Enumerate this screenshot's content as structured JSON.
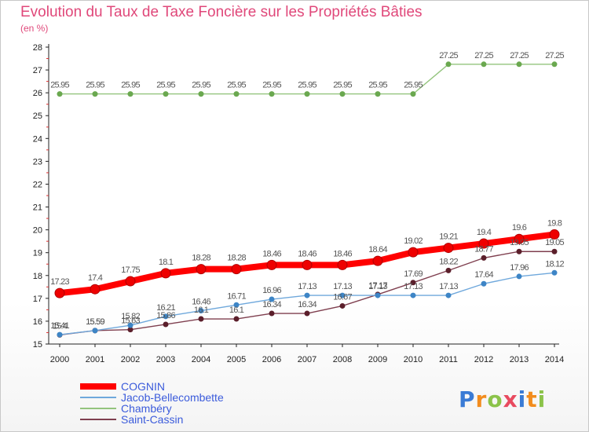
{
  "title": "Evolution du Taux de Taxe Foncière sur les Propriétés Bâties",
  "subtitle": "(en %)",
  "logo": {
    "letters": [
      "P",
      "r",
      "o",
      "x",
      "i",
      "t",
      "i"
    ],
    "colors": [
      "#3a7bd5",
      "#f28c1e",
      "#8bc34a",
      "#e84a5f",
      "#3a7bd5",
      "#f28c1e",
      "#8bc34a"
    ]
  },
  "chart_data": {
    "type": "line",
    "title": "Evolution du Taux de Taxe Foncière sur les Propriétés Bâties",
    "ylabel": "(en %)",
    "xlabel": "",
    "ylim": [
      15,
      28
    ],
    "yticks": [
      "15",
      "16",
      "17",
      "18",
      "19",
      "20",
      "21",
      "22",
      "23",
      "24",
      "25",
      "26",
      "27",
      "28"
    ],
    "grid": false,
    "legend": "bottom-left",
    "x": [
      "2000",
      "2001",
      "2002",
      "2003",
      "2004",
      "2005",
      "2006",
      "2007",
      "2008",
      "2009",
      "2010",
      "2011",
      "2012",
      "2013",
      "2014"
    ],
    "series": [
      {
        "name": "COGNIN",
        "color": "#ff0000",
        "marker": "#cc0000",
        "thick": true,
        "values": [
          17.23,
          17.4,
          17.75,
          18.1,
          18.28,
          18.28,
          18.46,
          18.46,
          18.46,
          18.64,
          19.02,
          19.21,
          19.4,
          19.6,
          19.8
        ],
        "labels": [
          "17.23",
          "17.4",
          "17.75",
          "18.1",
          "18.28",
          "18.28",
          "18.46",
          "18.46",
          "18.46",
          "18.64",
          "19.02",
          "19.21",
          "19.4",
          "19.6",
          "19.8"
        ]
      },
      {
        "name": "Jacob-Bellecombette",
        "color": "#6fa8dc",
        "marker": "#3d85c6",
        "thick": false,
        "values": [
          15.41,
          15.59,
          15.82,
          16.21,
          16.46,
          16.71,
          16.96,
          17.13,
          17.13,
          17.13,
          17.13,
          17.13,
          17.64,
          17.96,
          18.12
        ],
        "labels": [
          "15.41",
          "15.59",
          "15.82",
          "16.21",
          "16.46",
          "16.71",
          "16.96",
          "17.13",
          "17.13",
          "17.13",
          "17.13",
          "17.13",
          "17.64",
          "17.96",
          "18.12"
        ]
      },
      {
        "name": "Chambéry",
        "color": "#93c47d",
        "marker": "#6aa84f",
        "thick": false,
        "values": [
          25.95,
          25.95,
          25.95,
          25.95,
          25.95,
          25.95,
          25.95,
          25.95,
          25.95,
          25.95,
          25.95,
          27.25,
          27.25,
          27.25,
          27.25
        ],
        "labels": [
          "25.95",
          "25.95",
          "25.95",
          "25.95",
          "25.95",
          "25.95",
          "25.95",
          "25.95",
          "25.95",
          "25.95",
          "25.95",
          "27.25",
          "27.25",
          "27.25",
          "27.25"
        ]
      },
      {
        "name": "Saint-Cassin",
        "color": "#7f3f4f",
        "marker": "#5b1f2b",
        "thick": false,
        "values": [
          15.4,
          15.59,
          15.63,
          15.86,
          16.1,
          16.1,
          16.34,
          16.34,
          16.67,
          17.17,
          17.69,
          18.22,
          18.77,
          19.05,
          19.05
        ],
        "labels": [
          "15.4",
          "15.59",
          "15.63",
          "15.86",
          "16.1",
          "16.1",
          "16.34",
          "16.34",
          "16.67",
          "17.17",
          "17.69",
          "18.22",
          "18.77",
          "19.05",
          "19.05"
        ]
      }
    ]
  }
}
